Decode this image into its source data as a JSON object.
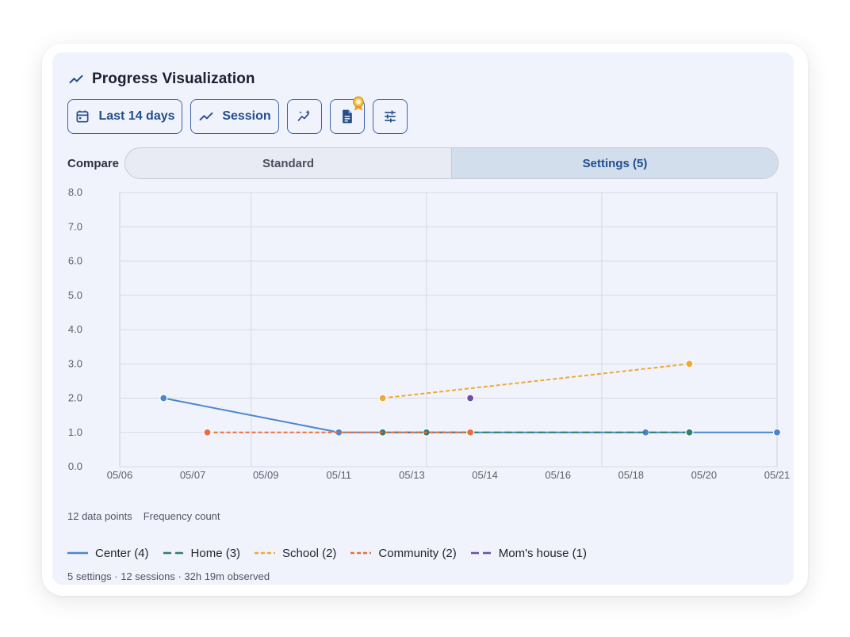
{
  "header": {
    "title": "Progress Visualization",
    "icon": "trending-up-icon"
  },
  "toolbar": {
    "date_range_label": "Last 14 days",
    "date_range_icon": "calendar-icon",
    "view_label": "Session",
    "view_icon": "trending-up-icon",
    "icon_buttons": [
      "sparkle-chart-icon",
      "document-icon",
      "sliders-icon"
    ]
  },
  "compare": {
    "label": "Compare",
    "options": [
      "Standard",
      "Settings (5)"
    ],
    "selected": "Settings (5)"
  },
  "chart_data": {
    "type": "line",
    "x_tick_labels": [
      "05/06",
      "05/07",
      "05/09",
      "05/11",
      "05/13",
      "05/14",
      "05/16",
      "05/18",
      "05/20",
      "05/21"
    ],
    "y_tick_labels": [
      "0.0",
      "1.0",
      "2.0",
      "3.0",
      "4.0",
      "5.0",
      "6.0",
      "7.0",
      "8.0"
    ],
    "ylim": [
      0,
      8
    ],
    "xlim": [
      "05/06",
      "05/21"
    ],
    "grid": true,
    "series": [
      {
        "name": "Center",
        "count": 4,
        "color": "#4a86cf",
        "dash": "solid",
        "points": [
          [
            "05/07",
            2
          ],
          [
            "05/11",
            1
          ],
          [
            "05/18",
            1
          ],
          [
            "05/21",
            1
          ]
        ]
      },
      {
        "name": "Home",
        "count": 3,
        "color": "#2f8070",
        "dash": "long",
        "points": [
          [
            "05/12",
            1
          ],
          [
            "05/13",
            1
          ],
          [
            "05/19",
            1
          ]
        ]
      },
      {
        "name": "School",
        "count": 2,
        "color": "#f0a830",
        "dash": "short",
        "points": [
          [
            "05/12",
            2
          ],
          [
            "05/19",
            3
          ]
        ]
      },
      {
        "name": "Community",
        "count": 2,
        "color": "#e8703a",
        "dash": "short",
        "points": [
          [
            "05/08",
            1
          ],
          [
            "05/14",
            1
          ]
        ]
      },
      {
        "name": "Mom's house",
        "count": 1,
        "color": "#6b4fa8",
        "dash": "long",
        "points": [
          [
            "05/14",
            2
          ]
        ]
      }
    ]
  },
  "info": {
    "points": "12 data points",
    "metric": "Frequency count"
  },
  "legend": [
    {
      "label": "Center (4)",
      "color": "#4a86cf",
      "dash": "solid"
    },
    {
      "label": "Home (3)",
      "color": "#2f8070",
      "dash": "long"
    },
    {
      "label": "School (2)",
      "color": "#f0a830",
      "dash": "short"
    },
    {
      "label": "Community (2)",
      "color": "#e8703a",
      "dash": "short"
    },
    {
      "label": "Mom's house (1)",
      "color": "#6b4fa8",
      "dash": "long"
    }
  ],
  "footer": {
    "summary": "5 settings · 12 sessions · 32h 19m observed"
  }
}
